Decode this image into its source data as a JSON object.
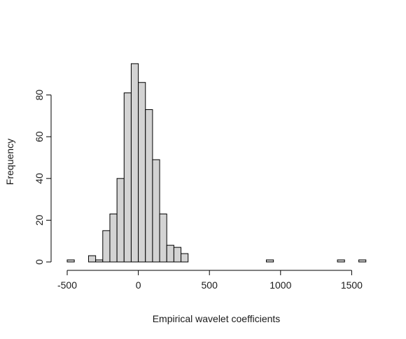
{
  "chart_data": {
    "type": "bar",
    "title": "",
    "xlabel": "Empirical wavelet coefficients",
    "ylabel": "Frequency",
    "bin_width": 50,
    "xlim": [
      -500,
      1600
    ],
    "ylim": [
      0,
      95
    ],
    "x_ticks": [
      -500,
      0,
      500,
      1000,
      1500
    ],
    "y_ticks": [
      0,
      20,
      40,
      60,
      80
    ],
    "bar_fill": "#d3d3d3",
    "bar_stroke": "#000000",
    "bins": [
      {
        "start": -500,
        "count": 1
      },
      {
        "start": -450,
        "count": 0
      },
      {
        "start": -400,
        "count": 0
      },
      {
        "start": -350,
        "count": 3
      },
      {
        "start": -300,
        "count": 1
      },
      {
        "start": -250,
        "count": 15
      },
      {
        "start": -200,
        "count": 23
      },
      {
        "start": -150,
        "count": 40
      },
      {
        "start": -100,
        "count": 81
      },
      {
        "start": -50,
        "count": 95
      },
      {
        "start": 0,
        "count": 86
      },
      {
        "start": 50,
        "count": 73
      },
      {
        "start": 100,
        "count": 49
      },
      {
        "start": 150,
        "count": 23
      },
      {
        "start": 200,
        "count": 8
      },
      {
        "start": 250,
        "count": 7
      },
      {
        "start": 300,
        "count": 4
      },
      {
        "start": 900,
        "count": 1
      },
      {
        "start": 1400,
        "count": 1
      },
      {
        "start": 1550,
        "count": 1
      }
    ]
  }
}
